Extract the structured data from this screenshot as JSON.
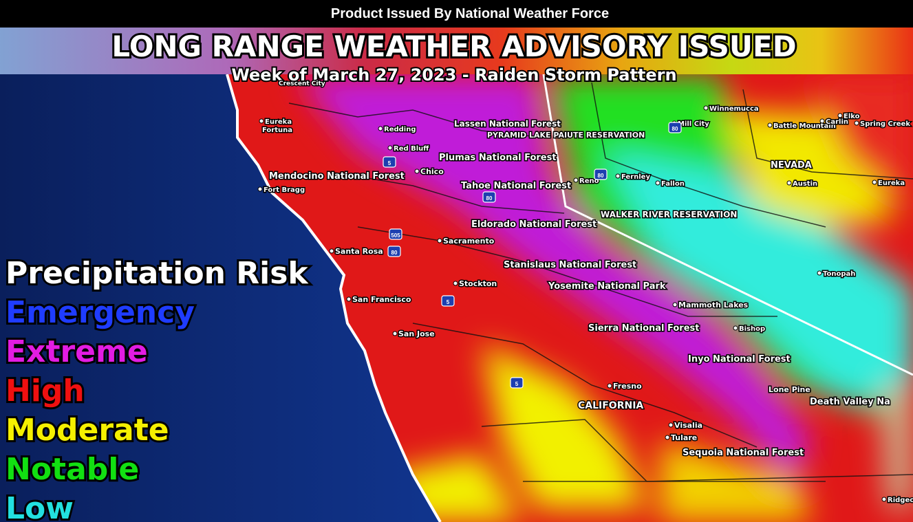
{
  "header": {
    "product": "Product Issued By National Weather Force",
    "title": "LONG RANGE WEATHER ADVISORY ISSUED",
    "subtitle": "Week of March 27, 2023 - Raiden Storm Pattern"
  },
  "legend": {
    "title": "Precipitation Risk",
    "items": [
      "Emergency",
      "Extreme",
      "High",
      "Moderate",
      "Notable",
      "Low"
    ]
  },
  "places": [
    "Crescent City",
    "Eureka",
    "Fortuna",
    "Redding",
    "Red Bluff",
    "Chico",
    "Lassen National Forest",
    "PYRAMID LAKE PAIUTE RESERVATION",
    "Plumas National Forest",
    "Mendocino National Forest",
    "Fort Bragg",
    "Tahoe National Forest",
    "Reno",
    "Fernley",
    "Fallon",
    "Winnemucca",
    "Mill City",
    "Battle Mountain",
    "Carlin",
    "Elko",
    "Spring Creek",
    "NEVADA",
    "Austin",
    "Eureka",
    "WALKER RIVER RESERVATION",
    "Eldorado National Forest",
    "Sacramento",
    "Santa Rosa",
    "Stanislaus National Forest",
    "Tonopah",
    "Stockton",
    "Yosemite National Park",
    "San Francisco",
    "Mammoth Lakes",
    "Sierra National Forest",
    "Bishop",
    "San Jose",
    "Inyo National Forest",
    "Fresno",
    "Lone Pine",
    "Death Valley Na",
    "CALIFORNIA",
    "Visalia",
    "Tulare",
    "Sequoia National Forest",
    "Ridgec"
  ],
  "highways": [
    "5",
    "80",
    "505",
    "80",
    "80",
    "5",
    "5",
    "80"
  ]
}
